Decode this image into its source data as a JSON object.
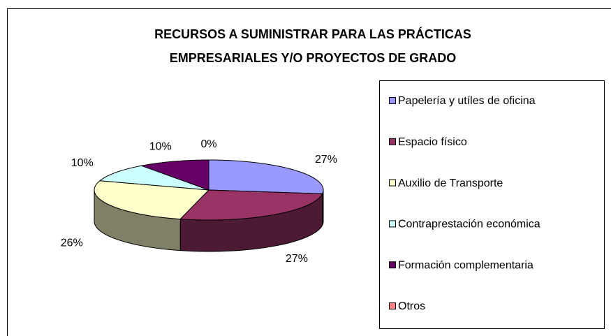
{
  "chart_data": {
    "type": "pie",
    "title": [
      "RECURSOS A SUMINISTRAR PARA LAS PRÁCTICAS",
      "EMPRESARIALES Y/O PROYECTOS DE GRADO"
    ],
    "categories": [
      "Papelería y utíles de oficina",
      "Espacio físico",
      "Auxilio de Transporte",
      "Contraprestación económica",
      "Formación complementaria",
      "Otros"
    ],
    "values": [
      27,
      27,
      26,
      10,
      10,
      0
    ],
    "value_labels": [
      "27%",
      "27%",
      "26%",
      "10%",
      "10%",
      "0%"
    ],
    "colors": [
      "#9999FF",
      "#993366",
      "#FFFFCC",
      "#CCFFFF",
      "#660066",
      "#FF8080"
    ],
    "legend": "right"
  }
}
